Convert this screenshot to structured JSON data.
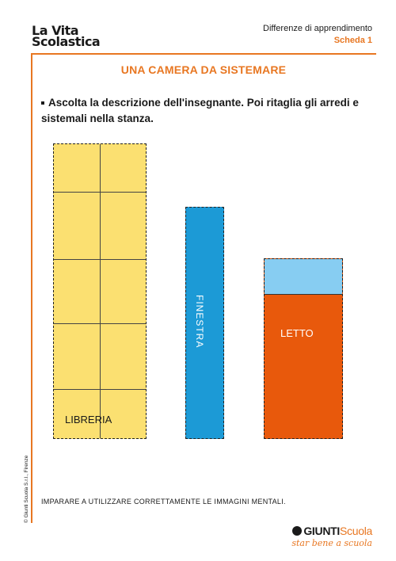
{
  "header": {
    "brand_line1": "La Vita",
    "brand_line2": "Scolastica",
    "subject": "Differenze di apprendimento",
    "sheet": "Scheda 1"
  },
  "title": "UNA CAMERA DA SISTEMARE",
  "instruction": "Ascolta la descrizione dell'insegnante. Poi ritaglia gli arredi e sistemali nella stanza.",
  "furniture": {
    "libreria": "LIBRERIA",
    "finestra": "FINESTRA",
    "letto": "LETTO"
  },
  "footer": {
    "objective": "IMPARARE A UTILIZZARE CORRETTAMENTE LE IMMAGINI MENTALI.",
    "copyright": "© Giunti Scuola S.r.l., Firenze",
    "publisher": "GIUNTI",
    "publisher_accent": "Scuola",
    "tagline": "star bene a scuola"
  },
  "colors": {
    "accent": "#e87722",
    "libreria": "#fbe071",
    "finestra": "#1c9ad6",
    "letto": "#e8590c",
    "cuscino": "#87cdf2"
  }
}
